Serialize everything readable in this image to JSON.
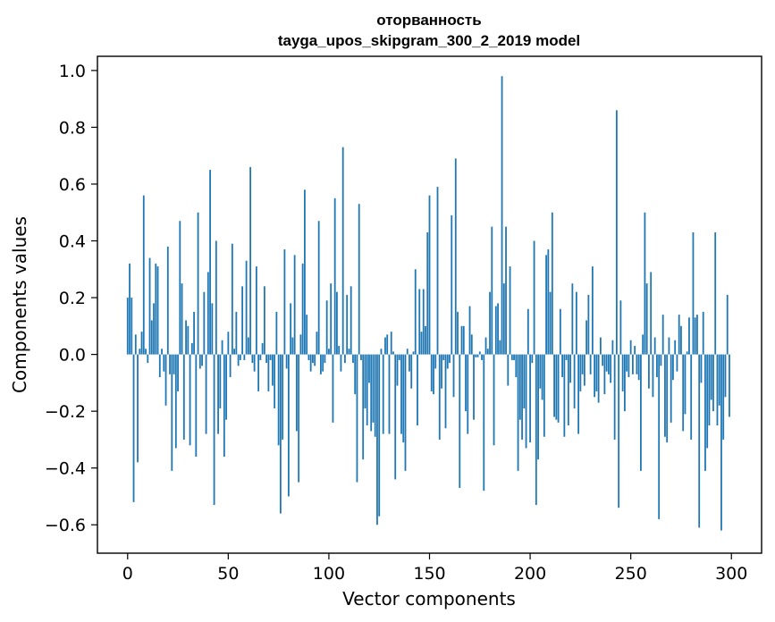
{
  "chart_data": {
    "type": "bar",
    "title_lines": [
      "оторванность",
      "tayga_upos_skipgram_300_2_2019 model"
    ],
    "xlabel": "Vector components",
    "ylabel": "Components values",
    "xlim": [
      -15,
      315
    ],
    "ylim": [
      -0.7,
      1.05
    ],
    "xticks": [
      0,
      50,
      100,
      150,
      200,
      250,
      300
    ],
    "yticks": [
      -0.6,
      -0.4,
      -0.2,
      0.0,
      0.2,
      0.4,
      0.6,
      0.8,
      1.0
    ],
    "xtick_labels": [
      "0",
      "50",
      "100",
      "150",
      "200",
      "250",
      "300"
    ],
    "ytick_labels": [
      "−0.6",
      "−0.4",
      "−0.2",
      "0.0",
      "0.2",
      "0.4",
      "0.6",
      "0.8",
      "1.0"
    ],
    "bar_color": "#1f77b4",
    "grid": false,
    "x": [
      0,
      1,
      2,
      3,
      4,
      5,
      6,
      7,
      8,
      9,
      10,
      11,
      12,
      13,
      14,
      15,
      16,
      17,
      18,
      19,
      20,
      21,
      22,
      23,
      24,
      25,
      26,
      27,
      28,
      29,
      30,
      31,
      32,
      33,
      34,
      35,
      36,
      37,
      38,
      39,
      40,
      41,
      42,
      43,
      44,
      45,
      46,
      47,
      48,
      49,
      50,
      51,
      52,
      53,
      54,
      55,
      56,
      57,
      58,
      59,
      60,
      61,
      62,
      63,
      64,
      65,
      66,
      67,
      68,
      69,
      70,
      71,
      72,
      73,
      74,
      75,
      76,
      77,
      78,
      79,
      80,
      81,
      82,
      83,
      84,
      85,
      86,
      87,
      88,
      89,
      90,
      91,
      92,
      93,
      94,
      95,
      96,
      97,
      98,
      99,
      100,
      101,
      102,
      103,
      104,
      105,
      106,
      107,
      108,
      109,
      110,
      111,
      112,
      113,
      114,
      115,
      116,
      117,
      118,
      119,
      120,
      121,
      122,
      123,
      124,
      125,
      126,
      127,
      128,
      129,
      130,
      131,
      132,
      133,
      134,
      135,
      136,
      137,
      138,
      139,
      140,
      141,
      142,
      143,
      144,
      145,
      146,
      147,
      148,
      149,
      150,
      151,
      152,
      153,
      154,
      155,
      156,
      157,
      158,
      159,
      160,
      161,
      162,
      163,
      164,
      165,
      166,
      167,
      168,
      169,
      170,
      171,
      172,
      173,
      174,
      175,
      176,
      177,
      178,
      179,
      180,
      181,
      182,
      183,
      184,
      185,
      186,
      187,
      188,
      189,
      190,
      191,
      192,
      193,
      194,
      195,
      196,
      197,
      198,
      199,
      200,
      201,
      202,
      203,
      204,
      205,
      206,
      207,
      208,
      209,
      210,
      211,
      212,
      213,
      214,
      215,
      216,
      217,
      218,
      219,
      220,
      221,
      222,
      223,
      224,
      225,
      226,
      227,
      228,
      229,
      230,
      231,
      232,
      233,
      234,
      235,
      236,
      237,
      238,
      239,
      240,
      241,
      242,
      243,
      244,
      245,
      246,
      247,
      248,
      249,
      250,
      251,
      252,
      253,
      254,
      255,
      256,
      257,
      258,
      259,
      260,
      261,
      262,
      263,
      264,
      265,
      266,
      267,
      268,
      269,
      270,
      271,
      272,
      273,
      274,
      275,
      276,
      277,
      278,
      279,
      280,
      281,
      282,
      283,
      284,
      285,
      286,
      287,
      288,
      289,
      290,
      291,
      292,
      293,
      294,
      295,
      296,
      297,
      298,
      299
    ],
    "values": [
      0.2,
      0.32,
      0.2,
      -0.52,
      0.07,
      -0.38,
      0.02,
      0.08,
      0.56,
      0.02,
      -0.03,
      0.34,
      0.12,
      0.18,
      0.32,
      0.31,
      -0.08,
      0.02,
      -0.06,
      -0.18,
      0.38,
      -0.07,
      -0.41,
      -0.07,
      -0.33,
      -0.13,
      0.47,
      0.25,
      -0.3,
      0.12,
      0.1,
      -0.32,
      0.04,
      0.15,
      -0.36,
      0.5,
      -0.05,
      -0.04,
      0.22,
      -0.28,
      0.29,
      0.65,
      0.18,
      -0.53,
      0.4,
      -0.28,
      -0.19,
      0.05,
      -0.36,
      -0.23,
      0.08,
      -0.08,
      0.39,
      0.02,
      0.15,
      -0.04,
      -0.02,
      0.24,
      -0.02,
      0.33,
      0.06,
      0.66,
      -0.03,
      -0.06,
      0.31,
      -0.13,
      -0.02,
      0.04,
      0.24,
      -0.03,
      -0.13,
      -0.02,
      -0.11,
      -0.19,
      0.15,
      -0.32,
      -0.56,
      -0.3,
      0.37,
      -0.05,
      -0.5,
      0.18,
      0.06,
      0.35,
      -0.27,
      -0.45,
      0.07,
      0.32,
      0.58,
      0.14,
      -0.02,
      -0.06,
      -0.03,
      -0.04,
      0.08,
      0.47,
      -0.07,
      -0.06,
      -0.03,
      0.19,
      0.02,
      0.25,
      -0.24,
      0.55,
      0.22,
      0.03,
      -0.06,
      0.73,
      -0.03,
      0.21,
      0.02,
      0.24,
      -0.03,
      -0.14,
      -0.45,
      0.53,
      -0.02,
      -0.37,
      -0.19,
      -0.25,
      -0.1,
      -0.27,
      -0.24,
      -0.29,
      -0.6,
      -0.57,
      0.02,
      -0.28,
      0.06,
      0.07,
      -0.28,
      0.08,
      0.01,
      -0.44,
      -0.11,
      -0.02,
      -0.28,
      -0.31,
      -0.41,
      0.02,
      -0.06,
      -0.12,
      0.01,
      0.3,
      -0.25,
      0.23,
      0.08,
      0.23,
      0.1,
      0.43,
      0.56,
      -0.13,
      -0.14,
      -0.05,
      0.59,
      -0.3,
      -0.12,
      -0.02,
      -0.26,
      -0.05,
      -0.03,
      0.49,
      -0.15,
      0.69,
      0.15,
      -0.47,
      0.1,
      0.1,
      -0.2,
      -0.28,
      0.17,
      0.07,
      -0.23,
      -0.01,
      -0.01,
      0.01,
      -0.02,
      -0.48,
      0.06,
      0.02,
      0.22,
      0.45,
      -0.32,
      0.17,
      0.18,
      0.05,
      0.98,
      0.25,
      0.45,
      -0.11,
      0.31,
      -0.02,
      -0.02,
      -0.08,
      -0.41,
      -0.23,
      -0.3,
      -0.19,
      -0.33,
      0.16,
      -0.31,
      -0.03,
      0.4,
      -0.53,
      -0.37,
      -0.12,
      -0.16,
      -0.29,
      0.35,
      0.37,
      0.22,
      0.5,
      -0.22,
      -0.23,
      -0.24,
      0.16,
      -0.08,
      -0.29,
      -0.02,
      -0.25,
      -0.1,
      0.25,
      -0.19,
      0.22,
      -0.28,
      -0.13,
      -0.07,
      -0.11,
      0.12,
      0.21,
      -0.07,
      0.31,
      -0.15,
      -0.13,
      -0.17,
      0.06,
      -0.04,
      -0.14,
      -0.06,
      -0.07,
      -0.1,
      0.05,
      -0.3,
      0.86,
      -0.54,
      0.19,
      -0.13,
      -0.2,
      -0.06,
      -0.08,
      0.05,
      -0.07,
      0.03,
      -0.07,
      -0.09,
      -0.41,
      0.07,
      0.5,
      0.25,
      -0.12,
      0.29,
      -0.15,
      0.06,
      -0.08,
      -0.58,
      -0.04,
      0.14,
      -0.29,
      -0.31,
      0.06,
      -0.24,
      -0.09,
      0.05,
      -0.06,
      0.14,
      0.1,
      -0.27,
      -0.21,
      0.01,
      0.13,
      -0.3,
      0.43,
      0.13,
      0.14,
      -0.61,
      -0.1,
      0.15,
      -0.41,
      -0.33,
      -0.25,
      -0.16,
      -0.2,
      0.43,
      -0.25,
      -0.18,
      -0.62,
      -0.3,
      -0.15,
      0.21,
      -0.22
    ]
  }
}
